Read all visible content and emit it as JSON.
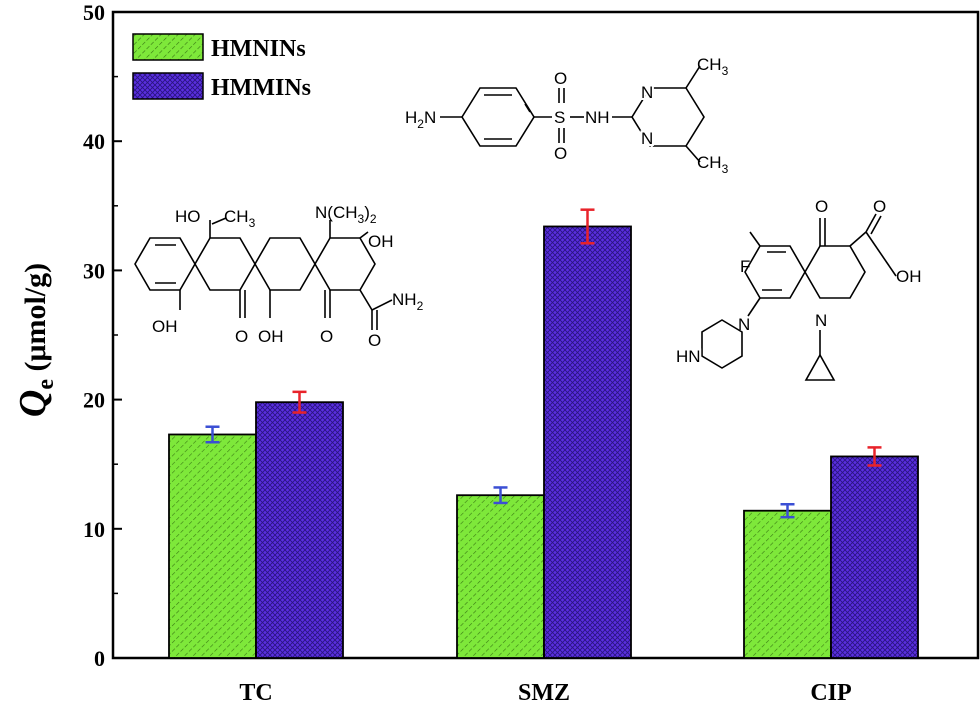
{
  "chart_data": {
    "type": "bar",
    "categories": [
      "TC",
      "SMZ",
      "CIP"
    ],
    "series": [
      {
        "name": "HMNINs",
        "values": [
          17.3,
          12.6,
          11.4
        ],
        "errors": [
          0.6,
          0.6,
          0.5
        ],
        "color": "#7ee83a",
        "error_color": "#3b4fd4"
      },
      {
        "name": "HMMINs",
        "values": [
          19.8,
          33.4,
          15.6
        ],
        "errors": [
          0.8,
          1.3,
          0.7
        ],
        "color": "#5a2ee0",
        "error_color": "#e8232a"
      }
    ],
    "ylabel_main": "Q",
    "ylabel_sub": "e",
    "ylabel_unit": "(μmol/g)",
    "ylim": [
      0,
      50
    ],
    "yticks": [
      0,
      10,
      20,
      30,
      40,
      50
    ],
    "legend_position": "top-left",
    "grid": false
  },
  "structures": {
    "tc": {
      "oh_ch3": "HO",
      "ch3": "CH",
      "ch3_sub": "3",
      "nme2": "N(CH",
      "nme2_sub": "3",
      "nme2_close": ")",
      "nme2_sub2": "2",
      "oh_right": "OH",
      "oh_bl": "OH",
      "o1": "O",
      "oh_mid": "OH",
      "o2": "O",
      "o3": "O",
      "nh2": "NH",
      "nh2_sub": "2"
    },
    "smz": {
      "h2n": "H",
      "h2n_sub": "2",
      "h2n_n": "N",
      "s": "S",
      "o_top": "O",
      "o_bot": "O",
      "nh": "NH",
      "n1": "N",
      "n2": "N",
      "ch3a": "CH",
      "ch3a_sub": "3",
      "ch3b": "CH",
      "ch3b_sub": "3"
    },
    "cip": {
      "f": "F",
      "o": "O",
      "o_acid": "O",
      "oh": "OH",
      "n_ring": "N",
      "n_pip": "N",
      "hn": "HN"
    }
  }
}
